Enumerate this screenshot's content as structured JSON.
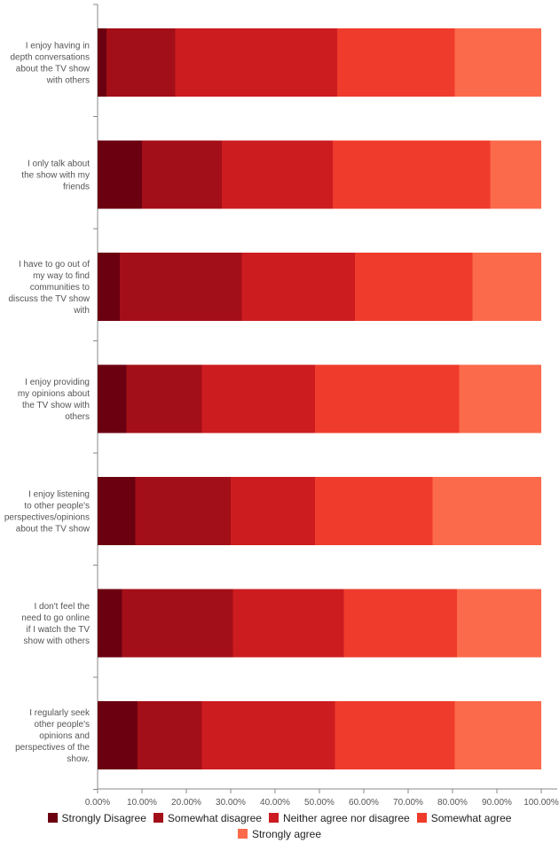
{
  "chart_data": {
    "type": "bar",
    "orientation": "horizontal",
    "stacked": "percent",
    "title": "",
    "xlabel": "",
    "ylabel": "",
    "xlim": [
      0,
      100
    ],
    "x_ticks": [
      "0.00%",
      "10.00%",
      "20.00%",
      "30.00%",
      "40.00%",
      "50.00%",
      "60.00%",
      "70.00%",
      "80.00%",
      "90.00%",
      "100.00%"
    ],
    "grid": false,
    "legend_position": "bottom",
    "categories": [
      "I enjoy having in depth conversations about the TV show with others",
      "I only talk about the show with my friends",
      "I have to go out of my way to find communities to discuss the TV show with",
      "I enjoy providing my opinions about the TV show with others",
      "I enjoy listening to other people's perspectives/opinions about the TV show",
      "I don't feel the need to go online if I watch the TV show with others",
      "I regularly seek other people's opinions and perspectives of the show."
    ],
    "series": [
      {
        "name": "Strongly Disagree",
        "color": "#6b0010",
        "values": [
          2,
          10,
          5,
          6.5,
          8.5,
          5.5,
          9
        ]
      },
      {
        "name": "Somewhat disagree",
        "color": "#a30f18",
        "values": [
          15.5,
          18,
          27.5,
          17,
          21.5,
          25,
          14.5
        ]
      },
      {
        "name": "Neither agree nor disagree",
        "color": "#cc1c20",
        "values": [
          36.5,
          25,
          25.5,
          25.5,
          19,
          25,
          30
        ]
      },
      {
        "name": "Somewhat agree",
        "color": "#ef3b2c",
        "values": [
          26.5,
          35.5,
          26.5,
          32.5,
          26.5,
          25.5,
          27
        ]
      },
      {
        "name": "Strongly agree",
        "color": "#fb6a4a",
        "values": [
          19.5,
          11.5,
          15.5,
          18.5,
          24.5,
          19,
          19.5
        ]
      }
    ]
  }
}
